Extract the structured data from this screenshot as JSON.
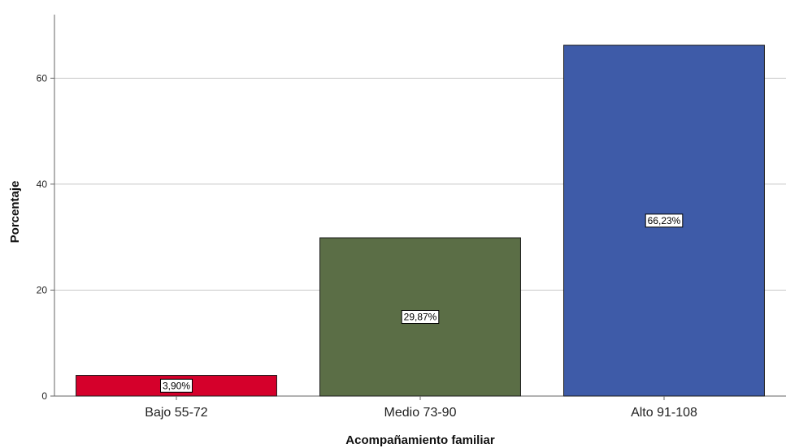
{
  "chart_data": {
    "type": "bar",
    "categories": [
      "Bajo 55-72",
      "Medio 73-90",
      "Alto 91-108"
    ],
    "values": [
      3.9,
      29.87,
      66.23
    ],
    "data_labels": [
      "3,90%",
      "29,87%",
      "66,23%"
    ],
    "colors": [
      "#d5002b",
      "#5b6e46",
      "#3e5ba8"
    ],
    "xlabel": "Acompañamiento familiar",
    "ylabel": "Porcentaje",
    "ylim": [
      0,
      72
    ],
    "yticks": [
      0,
      20,
      40,
      60
    ],
    "grid": true
  }
}
